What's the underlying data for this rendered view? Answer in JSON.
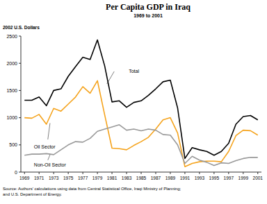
{
  "chart_data": {
    "type": "line",
    "title": "Per Capita GDP in Iraq",
    "subtitle": "1969 to 2001",
    "y_label": "2002 U.S. Dollars",
    "source": [
      "Source: Authors' calculations using data from Central Statistical Office, Iraqi Ministry of Planning;",
      "and U.S. Department of Energy."
    ],
    "x": [
      1969,
      1970,
      1971,
      1972,
      1973,
      1974,
      1975,
      1976,
      1977,
      1978,
      1979,
      1980,
      1981,
      1982,
      1983,
      1984,
      1985,
      1986,
      1987,
      1988,
      1989,
      1990,
      1991,
      1992,
      1993,
      1994,
      1995,
      1996,
      1997,
      1998,
      1999,
      2000,
      2001
    ],
    "series": [
      {
        "name": "Total",
        "color": "#000000",
        "values": [
          1320,
          1320,
          1380,
          1220,
          1500,
          1530,
          1760,
          1940,
          2110,
          2070,
          2430,
          1950,
          1290,
          1310,
          1190,
          1280,
          1310,
          1410,
          1530,
          1660,
          1690,
          1180,
          250,
          450,
          410,
          380,
          310,
          380,
          530,
          880,
          1020,
          1040,
          960
        ]
      },
      {
        "name": "Oil Sector",
        "color": "#f5a31c",
        "values": [
          1000,
          990,
          1060,
          880,
          1170,
          1120,
          1250,
          1380,
          1570,
          1450,
          1680,
          1050,
          440,
          430,
          410,
          490,
          560,
          640,
          790,
          960,
          1000,
          720,
          100,
          160,
          190,
          200,
          200,
          190,
          380,
          670,
          770,
          760,
          680
        ]
      },
      {
        "name": "Non-Oil Sector",
        "color": "#999999",
        "values": [
          310,
          330,
          330,
          340,
          320,
          410,
          500,
          560,
          550,
          620,
          750,
          790,
          830,
          870,
          770,
          790,
          760,
          790,
          770,
          690,
          680,
          500,
          160,
          290,
          220,
          180,
          120,
          170,
          160,
          210,
          250,
          270,
          270
        ]
      }
    ],
    "xlim": [
      1968.5,
      2001.5
    ],
    "xticks": [
      1969,
      1971,
      1973,
      1975,
      1977,
      1979,
      1981,
      1983,
      1985,
      1987,
      1989,
      1991,
      1993,
      1995,
      1997,
      1999,
      2001
    ],
    "ylim": [
      0,
      2500
    ],
    "yticks": [
      0,
      500,
      1000,
      1500,
      2000,
      2500
    ],
    "grid": false
  }
}
